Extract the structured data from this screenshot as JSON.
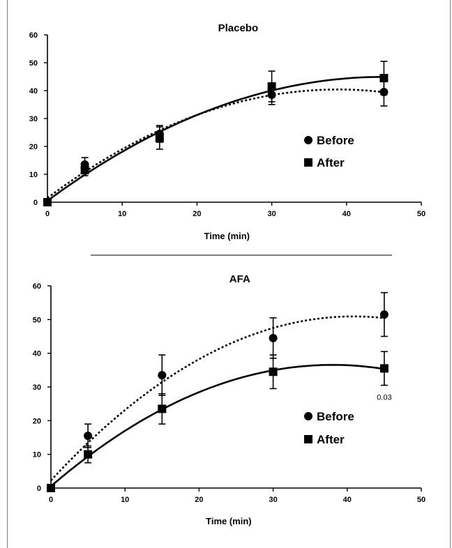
{
  "chart_data": [
    {
      "type": "scatter",
      "title": "Placebo",
      "xlabel": "Time (min)",
      "ylabel": "",
      "xlim": [
        0,
        50
      ],
      "ylim": [
        0,
        60
      ],
      "xticks": [
        0,
        10,
        20,
        30,
        40,
        50
      ],
      "yticks": [
        0,
        10,
        20,
        30,
        40,
        50,
        60
      ],
      "grid": false,
      "legend": "center-right",
      "series": [
        {
          "name": "Before",
          "marker": "circle",
          "line": "dotted",
          "x": [
            0,
            5,
            15,
            30,
            45
          ],
          "y": [
            0,
            13.5,
            24.5,
            38.5,
            39.5
          ],
          "err": [
            0,
            2.5,
            3,
            3.5,
            5
          ]
        },
        {
          "name": "After",
          "marker": "square",
          "line": "solid",
          "x": [
            0,
            5,
            15,
            30,
            45
          ],
          "y": [
            0,
            11.5,
            23,
            41.5,
            44.5
          ],
          "err": [
            0,
            2,
            4,
            5.5,
            6
          ]
        }
      ],
      "annotations": []
    },
    {
      "type": "scatter",
      "title": "AFA",
      "xlabel": "Time (min)",
      "ylabel": "",
      "xlim": [
        0,
        50
      ],
      "ylim": [
        0,
        60
      ],
      "xticks": [
        0,
        10,
        20,
        30,
        40,
        50
      ],
      "yticks": [
        0,
        10,
        20,
        30,
        40,
        50,
        60
      ],
      "grid": false,
      "legend": "bottom-right",
      "series": [
        {
          "name": "Before",
          "marker": "circle",
          "line": "dotted",
          "x": [
            0,
            5,
            15,
            30,
            45
          ],
          "y": [
            0,
            15.5,
            33.5,
            44.5,
            51.5
          ],
          "err": [
            0,
            3.5,
            6,
            6,
            6.5
          ]
        },
        {
          "name": "After",
          "marker": "square",
          "line": "solid",
          "x": [
            0,
            5,
            15,
            30,
            45
          ],
          "y": [
            0,
            10,
            23.5,
            34.5,
            35.5
          ],
          "err": [
            0,
            2.5,
            4.5,
            5,
            5
          ]
        }
      ],
      "annotations": [
        {
          "x": 45,
          "y": 27,
          "text": "0.03"
        }
      ]
    }
  ]
}
